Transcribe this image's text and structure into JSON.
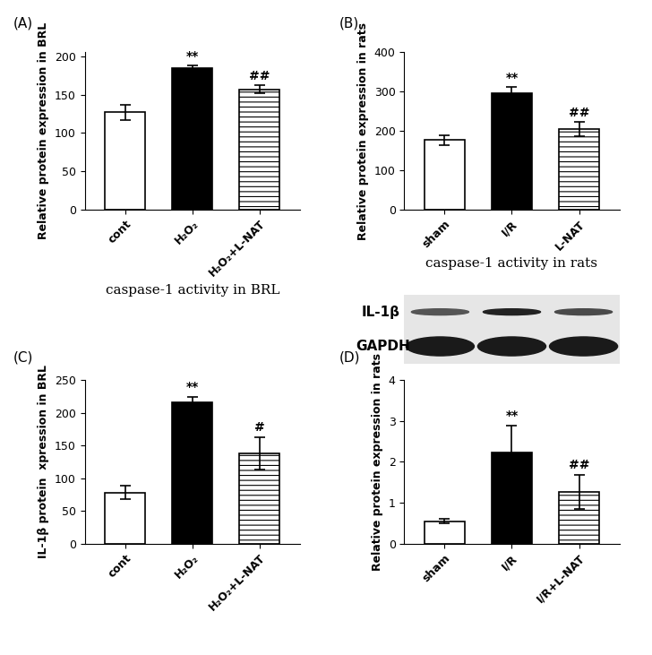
{
  "chart_data": [
    {
      "type": "bar",
      "panel_label": "(A)",
      "categories": [
        "cont",
        "H₂O₂",
        "H₂O₂+L-NAT"
      ],
      "values": [
        127,
        184,
        157
      ],
      "errors": [
        10,
        4,
        5
      ],
      "annotations": [
        null,
        "**",
        "##"
      ],
      "colors": [
        "#ffffff",
        "#000000",
        "#ffffff"
      ],
      "y_label": "Relative protein expression in BRL",
      "x_label": "caspase-1 activity in BRL",
      "ylim": [
        0,
        205
      ],
      "yticks": [
        0,
        50,
        100,
        150,
        200
      ]
    },
    {
      "type": "bar",
      "panel_label": "(B)",
      "categories": [
        "sham",
        "I/R",
        "L-NAT"
      ],
      "values": [
        177,
        297,
        205
      ],
      "errors": [
        12,
        15,
        18
      ],
      "annotations": [
        null,
        "**",
        "##"
      ],
      "colors": [
        "#ffffff",
        "#000000",
        "#ffffff"
      ],
      "y_label": "Relative protein expression in rats",
      "x_label": "caspase-1 activity in rats",
      "ylim": [
        0,
        400
      ],
      "yticks": [
        0,
        100,
        200,
        300,
        400
      ]
    },
    {
      "type": "bar",
      "panel_label": "(C)",
      "categories": [
        "cont",
        "H₂O₂",
        "H₂O₂+L-NAT"
      ],
      "values": [
        78,
        216,
        138
      ],
      "errors": [
        10,
        8,
        25
      ],
      "annotations": [
        null,
        "**",
        "#"
      ],
      "colors": [
        "#ffffff",
        "#000000",
        "#ffffff"
      ],
      "y_label": "IL-1β protein  xpression in BRL",
      "ylim": [
        0,
        250
      ],
      "yticks": [
        0,
        50,
        100,
        150,
        200,
        250
      ]
    },
    {
      "type": "bar",
      "panel_label": "(D)",
      "categories": [
        "sham",
        "I/R",
        "I/R+L-NAT"
      ],
      "values": [
        0.55,
        2.22,
        1.27
      ],
      "errors": [
        0.05,
        0.67,
        0.42
      ],
      "annotations": [
        null,
        "**",
        "##"
      ],
      "colors": [
        "#ffffff",
        "#000000",
        "#ffffff"
      ],
      "y_label": "Relative protein expression in rats",
      "blot_labels": [
        "IL-1β",
        "GAPDH"
      ],
      "ylim": [
        0,
        4
      ],
      "yticks": [
        0,
        1,
        2,
        3,
        4
      ]
    }
  ]
}
